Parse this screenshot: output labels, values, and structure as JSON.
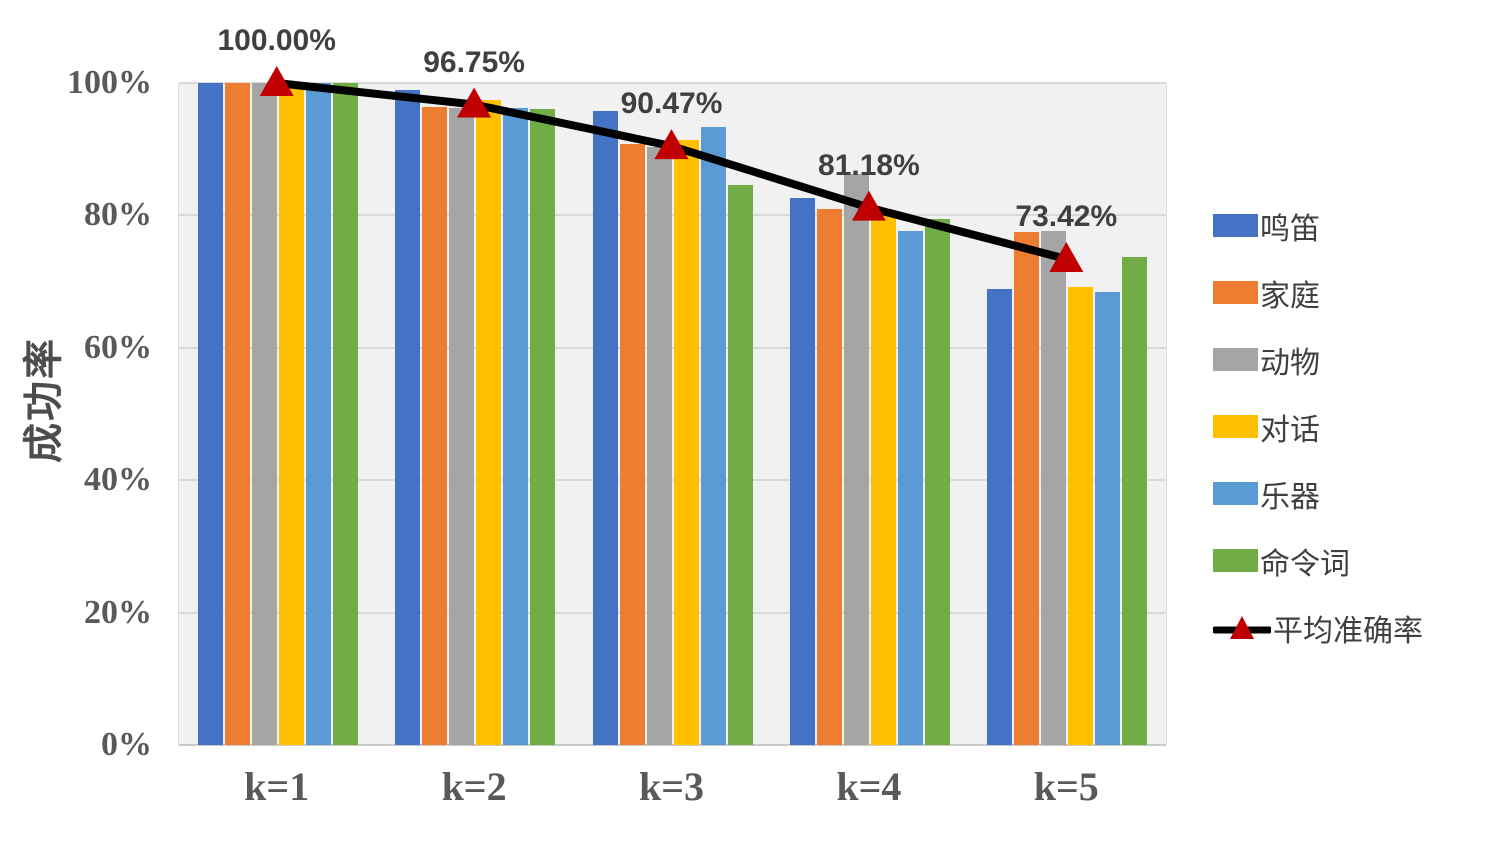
{
  "chart_data": {
    "type": "bar",
    "title": "",
    "xlabel": "",
    "ylabel": "成功率",
    "ylim": [
      0,
      100
    ],
    "grid": true,
    "legend_position": "right",
    "y_ticks": [
      "0%",
      "20%",
      "40%",
      "60%",
      "80%",
      "100%"
    ],
    "categories": [
      "k=1",
      "k=2",
      "k=3",
      "k=4",
      "k=5"
    ],
    "series": [
      {
        "name": "鸣笛",
        "color": "#4472C4",
        "values": [
          100,
          99.0,
          95.7,
          82.7,
          68.9
        ]
      },
      {
        "name": "家庭",
        "color": "#ED7D31",
        "values": [
          100,
          96.4,
          90.8,
          80.9,
          77.5
        ]
      },
      {
        "name": "动物",
        "color": "#A5A5A5",
        "values": [
          100,
          96.2,
          90.3,
          86.2,
          77.7
        ]
      },
      {
        "name": "对话",
        "color": "#FFC000",
        "values": [
          100,
          97.4,
          91.4,
          80.8,
          69.2
        ]
      },
      {
        "name": "乐器",
        "color": "#5B9BD5",
        "values": [
          100,
          96.2,
          93.3,
          77.7,
          68.5
        ]
      },
      {
        "name": "命令词",
        "color": "#70AD47",
        "values": [
          100,
          96.0,
          84.6,
          79.5,
          73.7
        ]
      }
    ],
    "line_series": {
      "name": "平均准确率",
      "color": "#000000",
      "marker": "triangle-up",
      "marker_color": "#C00000",
      "values": [
        100.0,
        96.75,
        90.47,
        81.18,
        73.42
      ],
      "labels": [
        "100.00%",
        "96.75%",
        "90.47%",
        "81.18%",
        "73.42%"
      ]
    }
  },
  "colors": {
    "plot_background": "#F1F1F1",
    "gridline": "#D9D9D9",
    "axis_text": "#595959",
    "data_label_text": "#404040",
    "legend_text": "#404040"
  }
}
